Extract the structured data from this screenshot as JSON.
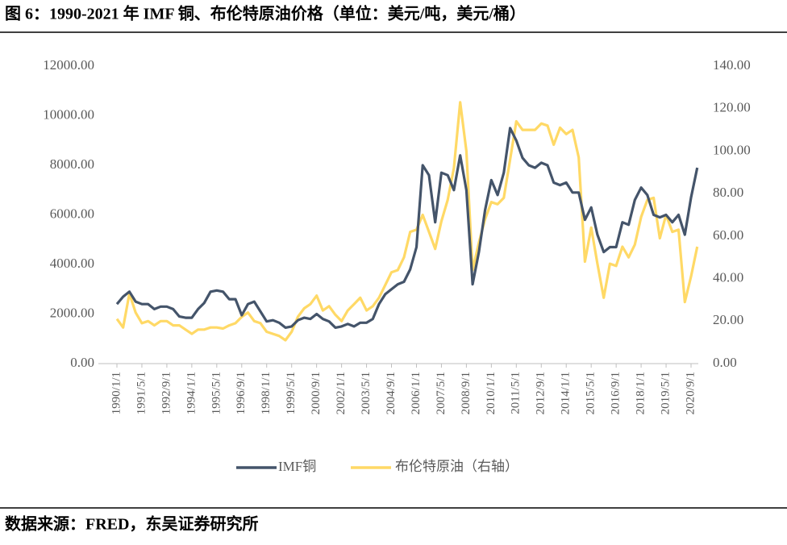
{
  "chart_data": {
    "type": "line",
    "title": "图 6：1990-2021 年 IMF 铜、布伦特原油价格（单位：美元/吨，美元/桶）",
    "source": "数据来源：FRED，东吴证券研究所",
    "legend": "bottom",
    "categories": [
      "1990/1/1",
      null,
      null,
      null,
      "1991/5/1",
      null,
      null,
      null,
      "1992/9/1",
      null,
      null,
      null,
      "1994/1/1",
      null,
      null,
      null,
      "1995/5/1",
      null,
      null,
      null,
      "1996/9/1",
      null,
      null,
      null,
      "1998/1/1",
      null,
      null,
      null,
      "1999/5/1",
      null,
      null,
      null,
      "2000/9/1",
      null,
      null,
      null,
      "2002/1/1",
      null,
      null,
      null,
      "2003/5/1",
      null,
      null,
      null,
      "2004/9/1",
      null,
      null,
      null,
      "2006/1/1",
      null,
      null,
      null,
      "2007/5/1",
      null,
      null,
      null,
      "2008/9/1",
      null,
      null,
      null,
      "2010/1/1",
      null,
      null,
      null,
      "2011/5/1",
      null,
      null,
      null,
      "2012/9/1",
      null,
      null,
      null,
      "2014/1/1",
      null,
      null,
      null,
      "2015/5/1",
      null,
      null,
      null,
      "2016/9/1",
      null,
      null,
      null,
      "2018/1/1",
      null,
      null,
      null,
      "2019/5/1",
      null,
      null,
      null,
      "2020/9/1",
      null
    ],
    "series": [
      {
        "name": "IMF铜",
        "color": "#44546a",
        "axis": "y",
        "values": [
          2400,
          2700,
          2900,
          2500,
          2400,
          2400,
          2200,
          2300,
          2300,
          2200,
          1900,
          1850,
          1850,
          2200,
          2450,
          2900,
          2950,
          2900,
          2600,
          2600,
          1950,
          2400,
          2500,
          2100,
          1700,
          1750,
          1650,
          1450,
          1500,
          1750,
          1850,
          1800,
          2000,
          1800,
          1700,
          1450,
          1500,
          1600,
          1500,
          1650,
          1650,
          1800,
          2400,
          2800,
          3000,
          3200,
          3300,
          3800,
          4700,
          8000,
          7600,
          5700,
          7700,
          7600,
          7000,
          8400,
          7000,
          3200,
          4500,
          6200,
          7400,
          6800,
          7700,
          9500,
          9000,
          8300,
          8000,
          7900,
          8100,
          8000,
          7300,
          7200,
          7300,
          6900,
          6900,
          5800,
          6300,
          5200,
          4500,
          4700,
          4700,
          5700,
          5600,
          6600,
          7100,
          6800,
          6000,
          5900,
          6000,
          5700,
          6000,
          5200,
          6700,
          7900
        ]
      },
      {
        "name": "布伦特原油（右轴）",
        "color": "#ffd966",
        "axis": "y2",
        "values": [
          21,
          17,
          33,
          24,
          19,
          20,
          18,
          20,
          20,
          18,
          18,
          16,
          14,
          16,
          16,
          17,
          17,
          16.5,
          18,
          19,
          22,
          24,
          20,
          19,
          15,
          14,
          13,
          11,
          15,
          22,
          26,
          28,
          32,
          25,
          27,
          23,
          20,
          25,
          28,
          31,
          25,
          27,
          31,
          37,
          43,
          44,
          50,
          62,
          63,
          70,
          62,
          54,
          67,
          77,
          92,
          123,
          100,
          44,
          57,
          68,
          76,
          75,
          78,
          96,
          114,
          110,
          110,
          110,
          113,
          112,
          103,
          111,
          108,
          110,
          97,
          48,
          64,
          47,
          31,
          47,
          46,
          55,
          50,
          56,
          69,
          77,
          78,
          59,
          70,
          62,
          63,
          29,
          41,
          55
        ]
      }
    ],
    "ylim": [
      0,
      12000
    ],
    "yticks": [
      {
        "value": 0,
        "label": "0.00"
      },
      {
        "value": 2000,
        "label": "2000.00"
      },
      {
        "value": 4000,
        "label": "4000.00"
      },
      {
        "value": 6000,
        "label": "6000.00"
      },
      {
        "value": 8000,
        "label": "8000.00"
      },
      {
        "value": 10000,
        "label": "10000.00"
      },
      {
        "value": 12000,
        "label": "12000.00"
      }
    ],
    "y2lim": [
      0,
      140
    ],
    "y2ticks": [
      {
        "value": 0,
        "label": "0.00"
      },
      {
        "value": 20,
        "label": "20.00"
      },
      {
        "value": 40,
        "label": "40.00"
      },
      {
        "value": 60,
        "label": "60.00"
      },
      {
        "value": 80,
        "label": "80.00"
      },
      {
        "value": 100,
        "label": "100.00"
      },
      {
        "value": 120,
        "label": "120.00"
      },
      {
        "value": 140,
        "label": "140.00"
      }
    ]
  }
}
